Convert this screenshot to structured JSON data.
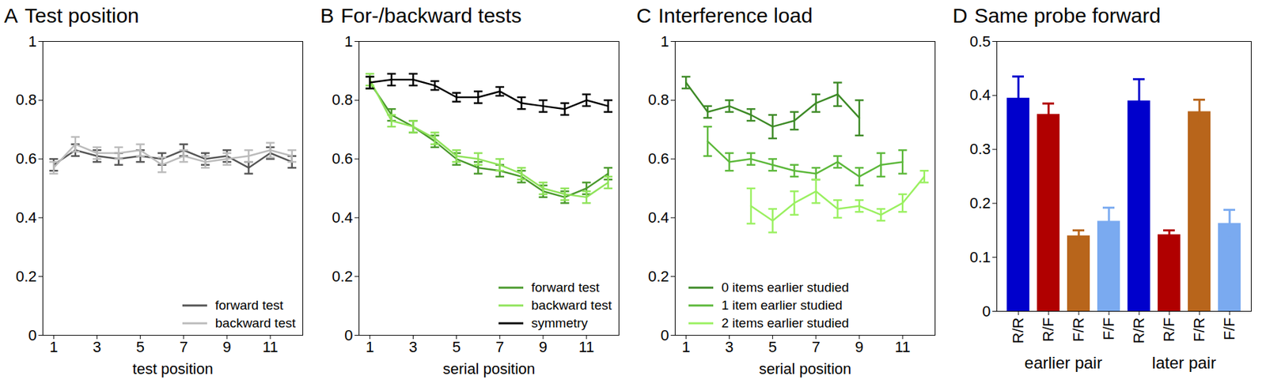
{
  "chart_data": [
    {
      "type": "line",
      "panel": "A",
      "title": "Test position",
      "xlabel": "test position",
      "x": [
        1,
        2,
        3,
        4,
        5,
        6,
        7,
        8,
        9,
        10,
        11,
        12
      ],
      "xlim": [
        0.5,
        12.5
      ],
      "xticks": [
        1,
        3,
        5,
        7,
        9,
        11
      ],
      "ylim": [
        0,
        1
      ],
      "yticks": [
        0,
        0.2,
        0.4,
        0.6,
        0.8,
        1
      ],
      "legend": "lower right",
      "series": [
        {
          "name": "forward test",
          "color": "#555555",
          "values": [
            0.58,
            0.63,
            0.61,
            0.6,
            0.61,
            0.6,
            0.63,
            0.6,
            0.61,
            0.57,
            0.62,
            0.59
          ],
          "errors": [
            0.02,
            0.02,
            0.02,
            0.02,
            0.02,
            0.02,
            0.02,
            0.02,
            0.02,
            0.02,
            0.02,
            0.02
          ]
        },
        {
          "name": "backward test",
          "color": "#bbbbbb",
          "values": [
            0.57,
            0.65,
            0.62,
            0.62,
            0.63,
            0.58,
            0.61,
            0.59,
            0.6,
            0.61,
            0.63,
            0.61
          ],
          "errors": [
            0.02,
            0.025,
            0.02,
            0.02,
            0.02,
            0.025,
            0.02,
            0.02,
            0.02,
            0.02,
            0.025,
            0.02
          ]
        }
      ]
    },
    {
      "type": "line",
      "panel": "B",
      "title": "For-/backward tests",
      "xlabel": "serial position",
      "x": [
        1,
        2,
        3,
        4,
        5,
        6,
        7,
        8,
        9,
        10,
        11,
        12
      ],
      "xlim": [
        0.5,
        12.5
      ],
      "xticks": [
        1,
        3,
        5,
        7,
        9,
        11
      ],
      "ylim": [
        0,
        1
      ],
      "yticks": [
        0,
        0.2,
        0.4,
        0.6,
        0.8,
        1
      ],
      "legend": "lower right",
      "series": [
        {
          "name": "forward test",
          "color": "#4a9a2c",
          "values": [
            0.86,
            0.75,
            0.71,
            0.66,
            0.6,
            0.57,
            0.56,
            0.54,
            0.49,
            0.47,
            0.5,
            0.55
          ],
          "errors": [
            0.02,
            0.02,
            0.02,
            0.02,
            0.02,
            0.02,
            0.02,
            0.02,
            0.02,
            0.02,
            0.02,
            0.02
          ]
        },
        {
          "name": "backward test",
          "color": "#8fe35a",
          "values": [
            0.87,
            0.73,
            0.71,
            0.67,
            0.61,
            0.6,
            0.58,
            0.55,
            0.5,
            0.48,
            0.47,
            0.52
          ],
          "errors": [
            0.02,
            0.02,
            0.02,
            0.02,
            0.02,
            0.02,
            0.02,
            0.02,
            0.02,
            0.02,
            0.02,
            0.02
          ]
        },
        {
          "name": "symmetry",
          "color": "#000000",
          "values": [
            0.86,
            0.87,
            0.87,
            0.85,
            0.81,
            0.81,
            0.83,
            0.79,
            0.78,
            0.77,
            0.8,
            0.78
          ],
          "errors": [
            0.02,
            0.02,
            0.02,
            0.015,
            0.015,
            0.02,
            0.015,
            0.02,
            0.02,
            0.02,
            0.02,
            0.02
          ]
        }
      ]
    },
    {
      "type": "line",
      "panel": "C",
      "title": "Interference load",
      "xlabel": "serial position",
      "x": [
        1,
        2,
        3,
        4,
        5,
        6,
        7,
        8,
        9,
        10,
        11,
        12
      ],
      "xlim": [
        0.5,
        12.5
      ],
      "xticks": [
        1,
        3,
        5,
        7,
        9,
        11
      ],
      "ylim": [
        0,
        1
      ],
      "yticks": [
        0,
        0.2,
        0.4,
        0.6,
        0.8,
        1
      ],
      "legend": "lower left",
      "series": [
        {
          "name": "0 items earlier studied",
          "color": "#3d8a26",
          "values": [
            0.86,
            0.76,
            0.78,
            0.75,
            0.71,
            0.73,
            0.79,
            0.82,
            0.74,
            null,
            null,
            null
          ],
          "errors": [
            0.02,
            0.02,
            0.02,
            0.02,
            0.04,
            0.03,
            0.03,
            0.04,
            0.06,
            null,
            null,
            null
          ]
        },
        {
          "name": "1 item earlier studied",
          "color": "#5cb83a",
          "values": [
            null,
            0.66,
            0.59,
            0.6,
            0.58,
            0.56,
            0.55,
            0.59,
            0.54,
            0.58,
            0.59,
            null
          ],
          "errors": [
            null,
            0.05,
            0.03,
            0.02,
            0.02,
            0.02,
            0.02,
            0.02,
            0.03,
            0.04,
            0.04,
            null
          ]
        },
        {
          "name": "2 items earlier studied",
          "color": "#9af060",
          "values": [
            null,
            null,
            null,
            0.44,
            0.39,
            0.45,
            0.49,
            0.43,
            0.44,
            0.41,
            0.45,
            0.54
          ],
          "errors": [
            null,
            null,
            null,
            0.06,
            0.04,
            0.04,
            0.04,
            0.03,
            0.02,
            0.02,
            0.03,
            0.02
          ]
        }
      ]
    },
    {
      "type": "bar",
      "panel": "D",
      "title": "Same probe forward",
      "categories": [
        "R/R",
        "R/F",
        "F/R",
        "F/F",
        "R/R",
        "R/F",
        "F/R",
        "F/F"
      ],
      "groups": [
        "earlier pair",
        "earlier pair",
        "earlier pair",
        "earlier pair",
        "later pair",
        "later pair",
        "later pair",
        "later pair"
      ],
      "values": [
        0.395,
        0.365,
        0.14,
        0.167,
        0.39,
        0.142,
        0.37,
        0.163
      ],
      "errors": [
        0.04,
        0.02,
        0.01,
        0.025,
        0.04,
        0.008,
        0.022,
        0.025
      ],
      "colors": [
        "#0000cc",
        "#b00000",
        "#b8651b",
        "#7aaaf0",
        "#0000cc",
        "#b00000",
        "#b8651b",
        "#7aaaf0"
      ],
      "ylim": [
        0,
        0.5
      ],
      "yticks": [
        0,
        0.1,
        0.2,
        0.3,
        0.4,
        0.5
      ]
    }
  ]
}
